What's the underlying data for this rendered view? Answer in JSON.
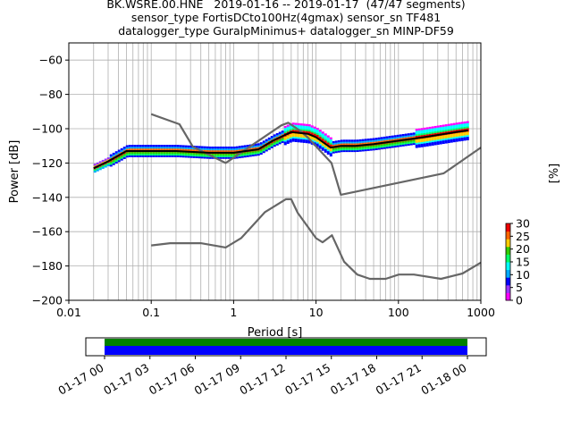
{
  "title": {
    "line1": "BK.WSRE.00.HNE   2019-01-16 -- 2019-01-17  (47/47 segments)",
    "line2": "sensor_type FortisDCto100Hz(4gmax) sensor_sn TF481",
    "line3": "datalogger_type GuralpMinimus+ datalogger_sn MINP-DF59"
  },
  "colors": {
    "noise_model": "#666666",
    "mean_curve": "#000000",
    "coverage_green": "#008000",
    "coverage_blue": "#0000ff"
  },
  "chart_data": [
    {
      "type": "heatmap",
      "xlabel": "Period [s]",
      "ylabel": "Power [dB]",
      "xscale": "log",
      "xlim": [
        0.01,
        1000
      ],
      "ylim": [
        -200,
        -50
      ],
      "x_ticks": [
        "0.01",
        "0.1",
        "1",
        "10",
        "100",
        "1000"
      ],
      "y_ticks": [
        "−200",
        "−180",
        "−160",
        "−140",
        "−120",
        "−100",
        "−80",
        "−60"
      ],
      "grid": true,
      "colorbar": {
        "label": "[%]",
        "range": [
          0,
          30
        ],
        "ticks": [
          "0",
          "5",
          "10",
          "15",
          "20",
          "25",
          "30"
        ]
      },
      "series": [
        {
          "role": "mode",
          "x": [
            0.02,
            0.03,
            0.05,
            0.1,
            0.2,
            0.5,
            1,
            2,
            3,
            5,
            8,
            10,
            15,
            20,
            30,
            50,
            100,
            200,
            500,
            700
          ],
          "y": [
            -123,
            -119,
            -113,
            -113,
            -113,
            -114,
            -114,
            -112,
            -107,
            -102,
            -103,
            -105,
            -111,
            -110,
            -110,
            -109,
            -107,
            -105,
            -102,
            -101
          ]
        },
        {
          "role": "upper_tail",
          "x": [
            0.03,
            0.05,
            0.1,
            0.2,
            0.3,
            0.5,
            8,
            10,
            12,
            15
          ],
          "y": [
            -104,
            -100,
            -99,
            -99,
            -101,
            -108,
            -96,
            -95,
            -97,
            -103
          ]
        },
        {
          "role": "new_high_noise_model",
          "x": [
            0.1,
            0.22,
            0.32,
            0.8,
            3.8,
            4.6,
            6.3,
            7.9,
            15.4,
            20,
            354.8,
            1000
          ],
          "y": [
            -91.5,
            -97.4,
            -110.5,
            -120,
            -98,
            -96.5,
            -101,
            -105,
            -120,
            -138.5,
            -126,
            -111
          ]
        },
        {
          "role": "new_low_noise_model",
          "x": [
            0.1,
            0.17,
            0.4,
            0.8,
            1.24,
            2.4,
            4.3,
            5,
            6,
            10,
            12,
            15.6,
            21.9,
            31.6,
            45,
            70,
            101,
            154,
            328,
            600,
            1000
          ],
          "y": [
            -168,
            -166.7,
            -166.7,
            -169.2,
            -163.7,
            -148.6,
            -141.1,
            -141.1,
            -149,
            -163.8,
            -166.2,
            -162.1,
            -177.5,
            -185,
            -187.5,
            -187.5,
            -185,
            -185,
            -187.5,
            -184.4,
            -178
          ]
        }
      ]
    },
    {
      "type": "bar",
      "role": "data_coverage",
      "x_ticks": [
        "01-17 00",
        "01-17 03",
        "01-17 06",
        "01-17 09",
        "01-17 12",
        "01-17 15",
        "01-17 18",
        "01-17 21",
        "01-18 00"
      ]
    }
  ]
}
